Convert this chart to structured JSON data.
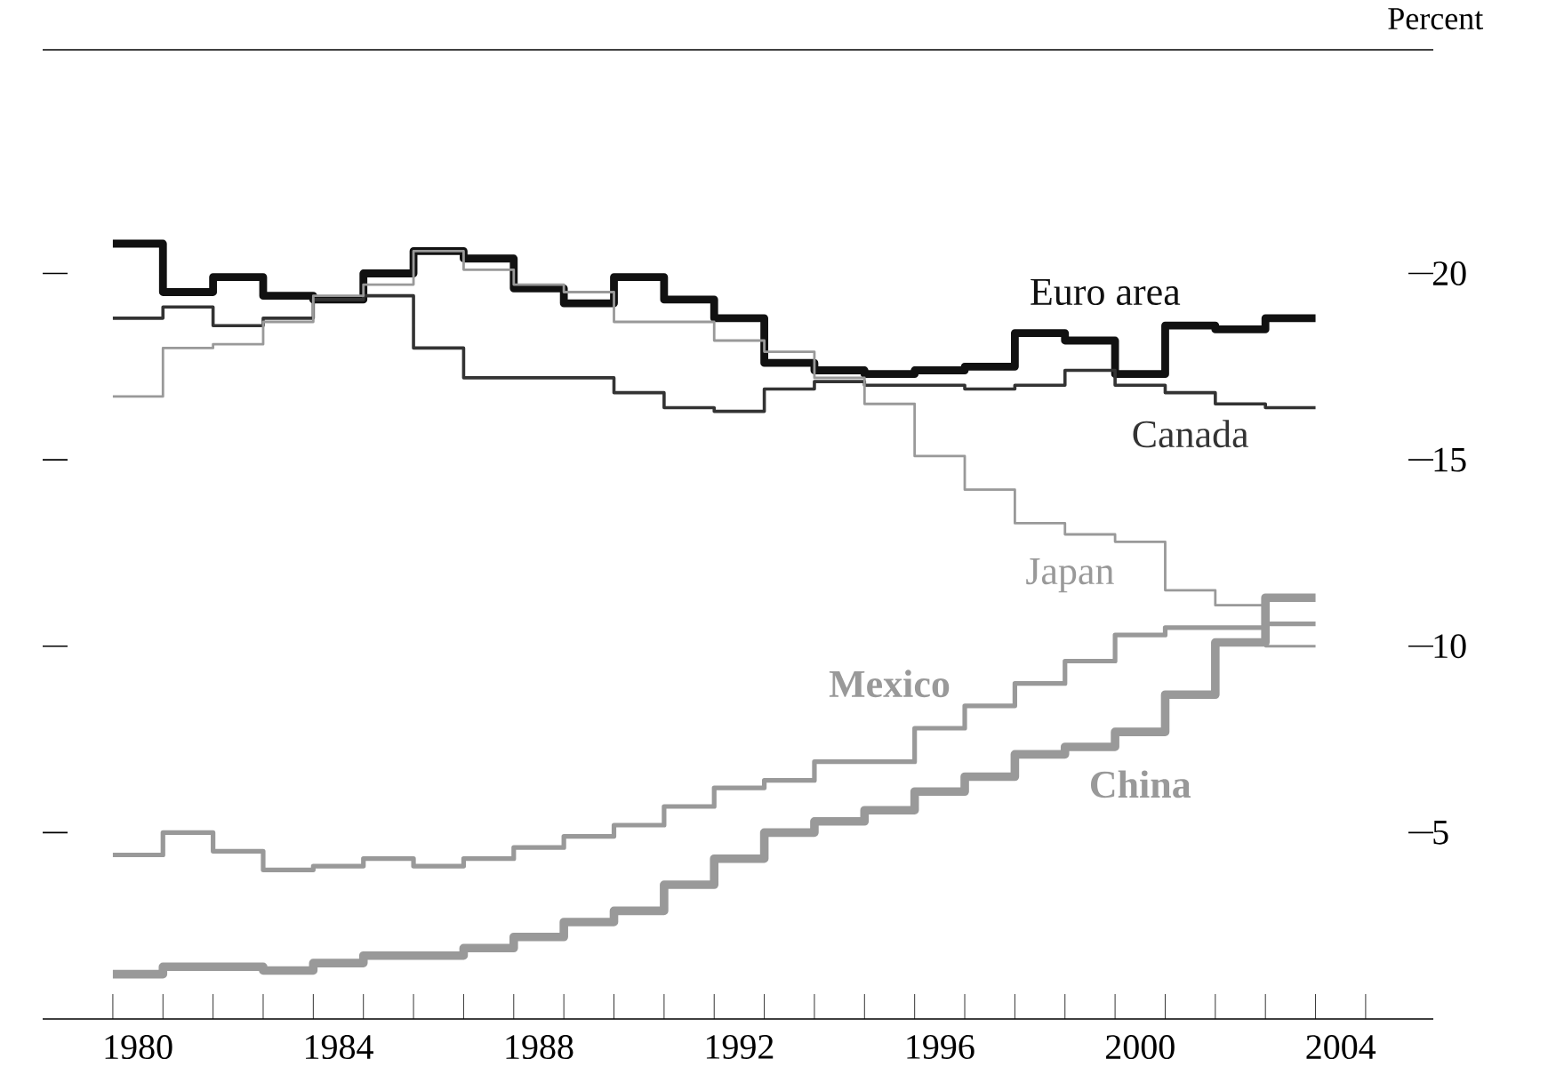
{
  "chart_data": {
    "type": "step",
    "ylabel": "Percent",
    "x": [
      1980,
      1981,
      1982,
      1983,
      1984,
      1985,
      1986,
      1987,
      1988,
      1989,
      1990,
      1991,
      1992,
      1993,
      1994,
      1995,
      1996,
      1997,
      1998,
      1999,
      2000,
      2001,
      2002,
      2003,
      2004
    ],
    "series": [
      {
        "name": "Euro area",
        "color": "#111111",
        "values": [
          20.8,
          19.5,
          19.9,
          19.4,
          19.3,
          20.0,
          20.6,
          20.4,
          19.6,
          19.2,
          19.9,
          19.3,
          18.8,
          17.6,
          17.4,
          17.3,
          17.4,
          17.5,
          18.4,
          18.2,
          17.3,
          18.6,
          18.5,
          18.8,
          18.8
        ]
      },
      {
        "name": "Canada",
        "color": "#333333",
        "values": [
          18.8,
          19.1,
          18.6,
          18.8,
          19.3,
          19.4,
          18.0,
          17.2,
          17.2,
          17.2,
          16.8,
          16.4,
          16.3,
          16.9,
          17.1,
          17.0,
          17.0,
          16.9,
          17.0,
          17.4,
          17.0,
          16.8,
          16.5,
          16.4,
          16.4
        ]
      },
      {
        "name": "Japan",
        "color": "#999999",
        "values": [
          16.7,
          18.0,
          18.1,
          18.7,
          19.4,
          19.7,
          20.6,
          20.1,
          19.7,
          19.5,
          18.7,
          18.7,
          18.2,
          17.9,
          17.2,
          16.5,
          15.1,
          14.2,
          13.3,
          13.0,
          12.8,
          11.5,
          11.1,
          10.0,
          10.0
        ]
      },
      {
        "name": "Mexico",
        "color": "#999999",
        "values": [
          4.4,
          5.0,
          4.5,
          4.0,
          4.1,
          4.3,
          4.1,
          4.3,
          4.6,
          4.9,
          5.2,
          5.7,
          6.2,
          6.4,
          6.9,
          6.9,
          7.8,
          8.4,
          9.0,
          9.6,
          10.3,
          10.5,
          10.5,
          10.6,
          10.6
        ]
      },
      {
        "name": "China",
        "color": "#999999",
        "values": [
          1.2,
          1.4,
          1.4,
          1.3,
          1.5,
          1.7,
          1.7,
          1.9,
          2.2,
          2.6,
          2.9,
          3.6,
          4.3,
          5.0,
          5.3,
          5.6,
          6.1,
          6.5,
          7.1,
          7.3,
          7.7,
          8.7,
          10.1,
          11.3,
          11.3
        ]
      }
    ],
    "xlim": [
      1978.6,
      2006.35
    ],
    "xticks": [
      {
        "value": 1980,
        "label": null
      },
      {
        "value": 1981,
        "label": null
      },
      {
        "value": 1982,
        "label": null
      },
      {
        "value": 1983,
        "label": null
      },
      {
        "value": 1984,
        "label": null
      },
      {
        "value": 1985,
        "label": null
      },
      {
        "value": 1986,
        "label": null
      },
      {
        "value": 1987,
        "label": null
      },
      {
        "value": 1988,
        "label": null
      },
      {
        "value": 1989,
        "label": null
      },
      {
        "value": 1990,
        "label": null
      },
      {
        "value": 1991,
        "label": null
      },
      {
        "value": 1992,
        "label": null
      },
      {
        "value": 1993,
        "label": null
      },
      {
        "value": 1994,
        "label": null
      },
      {
        "value": 1995,
        "label": null
      },
      {
        "value": 1996,
        "label": null
      },
      {
        "value": 1997,
        "label": null
      },
      {
        "value": 1998,
        "label": null
      },
      {
        "value": 1999,
        "label": null
      },
      {
        "value": 2000,
        "label": null
      },
      {
        "value": 2001,
        "label": null
      },
      {
        "value": 2002,
        "label": null
      },
      {
        "value": 2003,
        "label": null
      },
      {
        "value": 2004,
        "label": null
      },
      {
        "value": 2005,
        "label": null
      },
      {
        "value": 1980.5,
        "label": "1980"
      },
      {
        "value": 1984.5,
        "label": "1984"
      },
      {
        "value": 1988.5,
        "label": "1988"
      },
      {
        "value": 1992.5,
        "label": "1992"
      },
      {
        "value": 1996.5,
        "label": "1996"
      },
      {
        "value": 2000.5,
        "label": "2000"
      },
      {
        "value": 2004.5,
        "label": "2004"
      }
    ],
    "ylim": [
      0,
      26
    ],
    "yticks": [
      5,
      10,
      15,
      20
    ],
    "legend": false,
    "grid": false,
    "marker": "none",
    "line_style": "solid"
  }
}
